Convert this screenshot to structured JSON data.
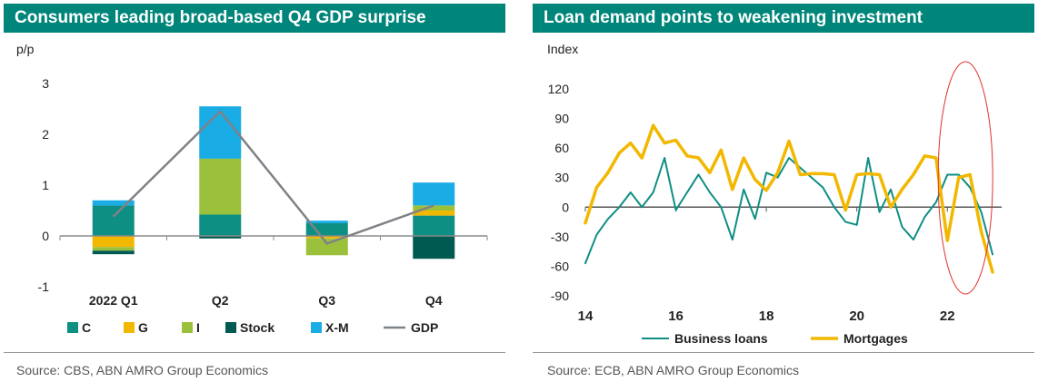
{
  "left_panel": {
    "title": "Consumers leading broad-based Q4 GDP surprise",
    "unit": "p/p",
    "source": "Source: CBS, ABN AMRO Group Economics"
  },
  "right_panel": {
    "title": "Loan demand points to weakening investment",
    "unit": "Index",
    "source": "Source: ECB, ABN AMRO Group Economics"
  },
  "colors": {
    "title_bg": "#00857a",
    "C": "#0e8f83",
    "G": "#f2b800",
    "I": "#9bc13c",
    "Stock": "#005a52",
    "X-M": "#1aace4",
    "GDP": "#7f8287",
    "business_loans": "#0e8f83",
    "mortgages": "#f2b800",
    "highlight": "#e0312d"
  },
  "chart_data": [
    {
      "type": "bar",
      "stacked": true,
      "title": "Consumers leading broad-based Q4 GDP surprise",
      "ylabel": "p/p",
      "ylim": [
        -1,
        3
      ],
      "yticks": [
        -1,
        0,
        1,
        2,
        3
      ],
      "categories": [
        "2022 Q1",
        "Q2",
        "Q3",
        "Q4"
      ],
      "series": [
        {
          "name": "C",
          "values": [
            0.6,
            0.42,
            0.25,
            0.4
          ]
        },
        {
          "name": "G",
          "values": [
            -0.22,
            0.0,
            -0.05,
            0.1
          ]
        },
        {
          "name": "I",
          "values": [
            -0.07,
            1.1,
            -0.33,
            0.1
          ]
        },
        {
          "name": "Stock",
          "values": [
            -0.07,
            -0.05,
            0.0,
            -0.45
          ]
        },
        {
          "name": "X-M",
          "values": [
            0.1,
            1.03,
            0.05,
            0.45
          ]
        }
      ],
      "line": {
        "name": "GDP",
        "values": [
          0.38,
          2.45,
          -0.15,
          0.6
        ]
      },
      "legend": [
        "C",
        "G",
        "I",
        "Stock",
        "X-M",
        "GDP"
      ],
      "legend_position": "bottom"
    },
    {
      "type": "line",
      "title": "Loan demand points to weakening investment",
      "ylabel": "Index",
      "ylim": [
        -90,
        120
      ],
      "yticks": [
        -90,
        -60,
        -30,
        0,
        30,
        60,
        90,
        120
      ],
      "xlim": [
        14,
        23.2
      ],
      "xticks": [
        14,
        16,
        18,
        20,
        22
      ],
      "xtick_labels": [
        "14",
        "16",
        "18",
        "20",
        "22"
      ],
      "series": [
        {
          "name": "Business loans",
          "x": [
            14.0,
            14.25,
            14.5,
            14.75,
            15.0,
            15.25,
            15.5,
            15.75,
            16.0,
            16.25,
            16.5,
            16.75,
            17.0,
            17.25,
            17.5,
            17.75,
            18.0,
            18.25,
            18.5,
            18.75,
            19.0,
            19.25,
            19.5,
            19.75,
            20.0,
            20.25,
            20.5,
            20.75,
            21.0,
            21.25,
            21.5,
            21.75,
            22.0,
            22.25,
            22.5,
            22.75,
            23.0
          ],
          "y": [
            -57,
            -28,
            -12,
            0,
            15,
            0,
            15,
            50,
            -3,
            15,
            33,
            15,
            0,
            -33,
            18,
            -12,
            35,
            30,
            50,
            40,
            30,
            20,
            0,
            -15,
            -18,
            50,
            -5,
            18,
            -20,
            -33,
            -10,
            5,
            33,
            33,
            20,
            -5,
            -48
          ]
        },
        {
          "name": "Mortgages",
          "x": [
            14.0,
            14.25,
            14.5,
            14.75,
            15.0,
            15.25,
            15.5,
            15.75,
            16.0,
            16.25,
            16.5,
            16.75,
            17.0,
            17.25,
            17.5,
            17.75,
            18.0,
            18.25,
            18.5,
            18.75,
            19.0,
            19.25,
            19.5,
            19.75,
            20.0,
            20.25,
            20.5,
            20.75,
            21.0,
            21.25,
            21.5,
            21.75,
            22.0,
            22.25,
            22.5,
            22.75,
            23.0
          ],
          "y": [
            -16,
            20,
            35,
            55,
            65,
            50,
            83,
            65,
            68,
            52,
            50,
            35,
            58,
            18,
            50,
            28,
            17,
            35,
            67,
            33,
            34,
            34,
            33,
            -3,
            33,
            34,
            33,
            0,
            18,
            33,
            52,
            50,
            -34,
            30,
            33,
            -25,
            -66
          ]
        }
      ],
      "legend": [
        "Business loans",
        "Mortgages"
      ],
      "legend_position": "bottom",
      "annotation": "red ellipse highlighting the latest readings"
    }
  ]
}
